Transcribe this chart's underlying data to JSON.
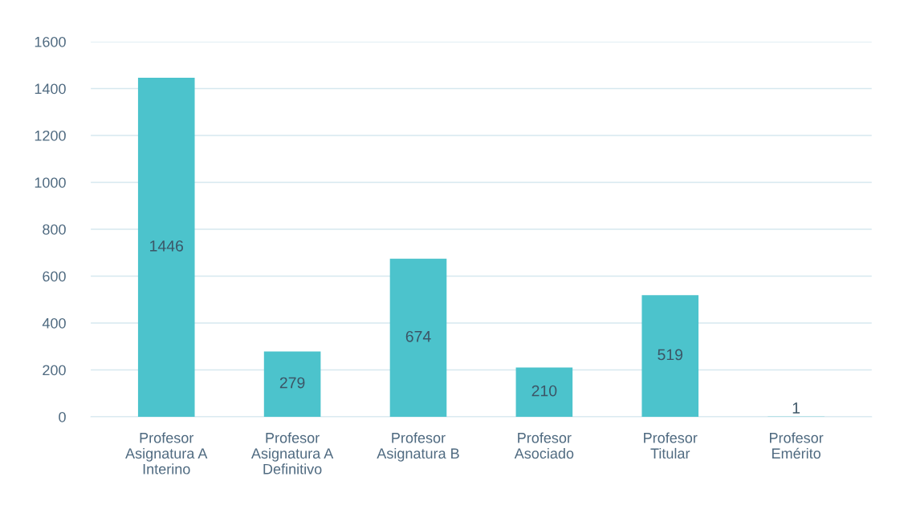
{
  "chart_data": {
    "type": "bar",
    "categories": [
      "Profesor\nAsignatura A\nInterino",
      "Profesor\nAsignatura A\nDefinitivo",
      "Profesor\nAsignatura B",
      "Profesor\nAsociado",
      "Profesor\nTitular",
      "Profesor\nEmérito"
    ],
    "values": [
      1446,
      279,
      674,
      210,
      519,
      1
    ],
    "color": "#4cc3cc",
    "ylim": [
      0,
      1600
    ],
    "yticks": [
      0,
      200,
      400,
      600,
      800,
      1000,
      1200,
      1400,
      1600
    ],
    "grid": "y",
    "data_labels": true
  }
}
